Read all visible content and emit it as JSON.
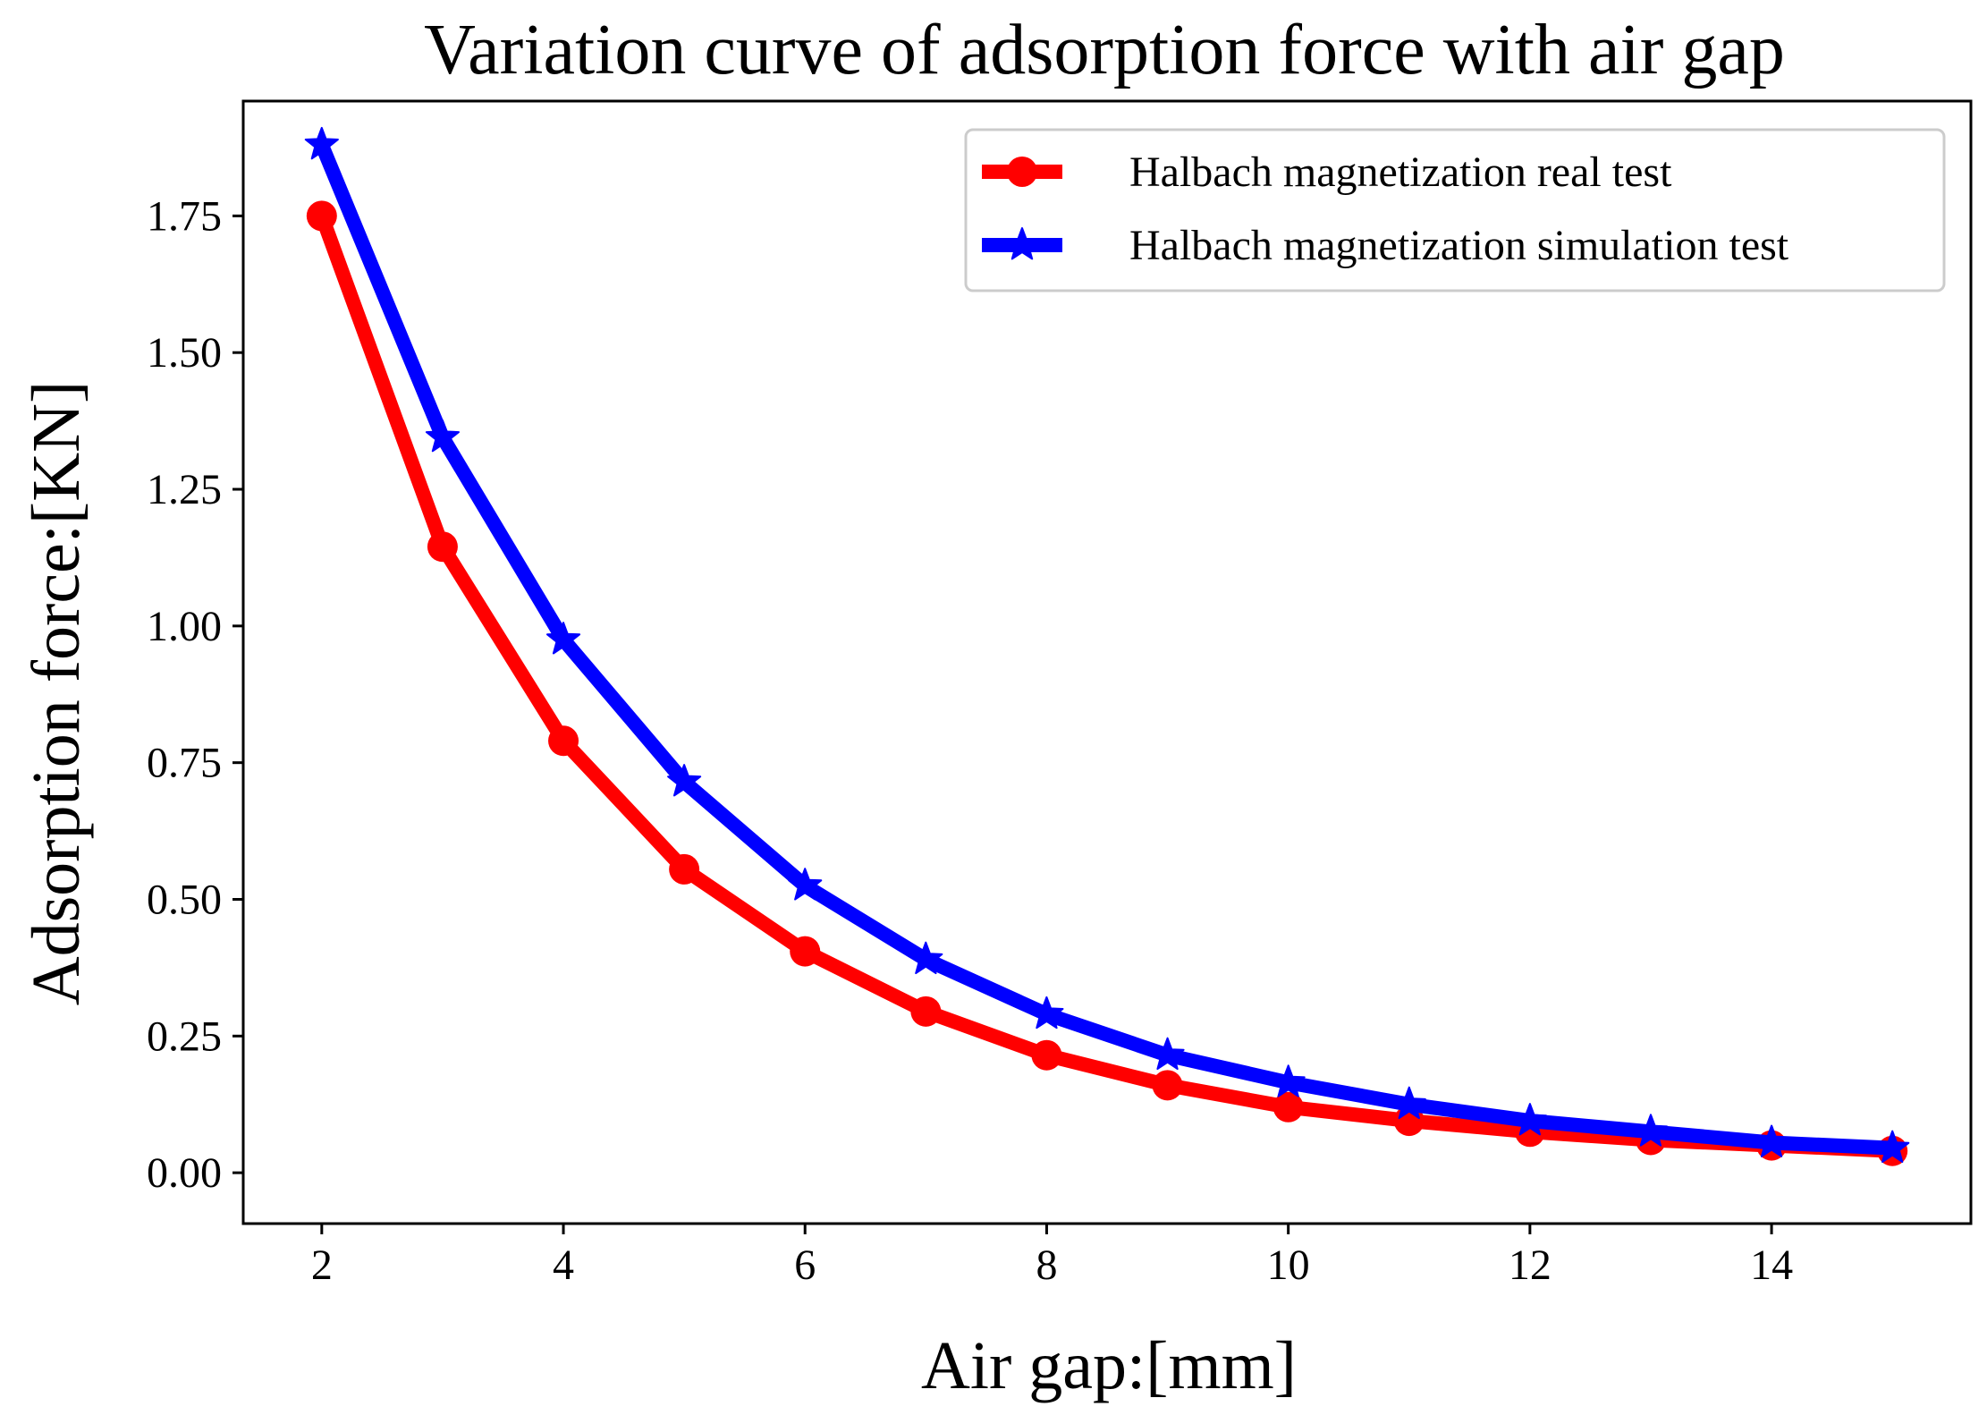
{
  "chart_data": {
    "type": "line",
    "title": "Variation curve of adsorption force with air gap",
    "xlabel": "Air gap:[mm]",
    "ylabel": "Adsorption force:[KN]",
    "xlim": [
      1.35,
      15.65
    ],
    "ylim": [
      -0.093,
      1.96
    ],
    "xticks": [
      2,
      4,
      6,
      8,
      10,
      12,
      14
    ],
    "xtick_labels": [
      "2",
      "4",
      "6",
      "8",
      "10",
      "12",
      "14"
    ],
    "yticks": [
      0.0,
      0.25,
      0.5,
      0.75,
      1.0,
      1.25,
      1.5,
      1.75
    ],
    "ytick_labels": [
      "0.00",
      "0.25",
      "0.50",
      "0.75",
      "1.00",
      "1.25",
      "1.50",
      "1.75"
    ],
    "grid": false,
    "legend_position": "top-right",
    "x": [
      2,
      3,
      4,
      5,
      6,
      7,
      8,
      9,
      10,
      11,
      12,
      13,
      14,
      15
    ],
    "series": [
      {
        "name": "Halbach magnetization real test",
        "color": "#ff0000",
        "marker": "circle",
        "values": [
          1.75,
          1.145,
          0.79,
          0.555,
          0.405,
          0.295,
          0.215,
          0.16,
          0.12,
          0.095,
          0.075,
          0.06,
          0.05,
          0.04
        ]
      },
      {
        "name": "Halbach magnetization simulation test",
        "color": "#0000ff",
        "marker": "star",
        "values": [
          1.88,
          1.345,
          0.975,
          0.715,
          0.525,
          0.39,
          0.29,
          0.215,
          0.165,
          0.125,
          0.095,
          0.075,
          0.055,
          0.045
        ]
      }
    ]
  }
}
